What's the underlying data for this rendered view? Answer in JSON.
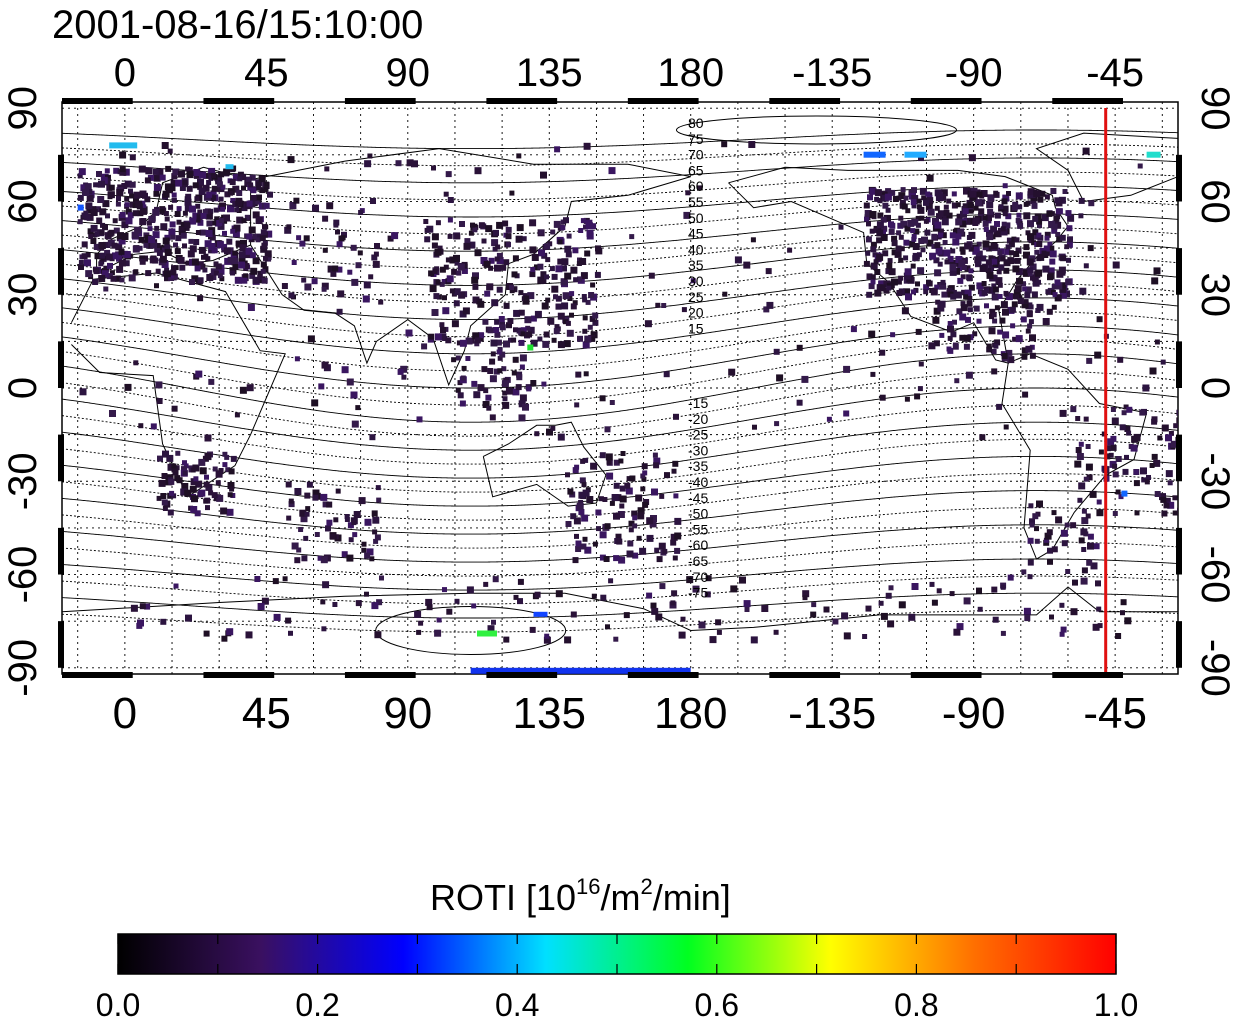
{
  "title": "2001-08-16/15:10:00",
  "map": {
    "lon_labels": [
      "0",
      "45",
      "90",
      "135",
      "180",
      "-135",
      "-90",
      "-45"
    ],
    "lon_values": [
      0,
      45,
      90,
      135,
      180,
      225,
      270,
      315
    ],
    "lat_labels_left": [
      "90",
      "60",
      "30",
      "0",
      "-30",
      "-60",
      "-90"
    ],
    "lat_labels_right": [
      "90",
      "60",
      "30",
      "0",
      "-30",
      "-60",
      "-90"
    ],
    "lat_values": [
      90,
      60,
      30,
      0,
      -30,
      -60,
      -90
    ],
    "lon_range": [
      -20,
      335
    ],
    "lat_range": [
      -92,
      92
    ],
    "terminator_lon": 312,
    "contour_labels_north": [
      "80",
      "75",
      "70",
      "65",
      "60",
      "55",
      "50",
      "45",
      "40",
      "35",
      "30",
      "25",
      "20",
      "15"
    ],
    "contour_labels_south": [
      "-15",
      "-20",
      "-25",
      "-30",
      "-35",
      "-40",
      "-45",
      "-50",
      "-55",
      "-60",
      "-65",
      "-70",
      "-75"
    ],
    "colors": {
      "terminator": "#e01010",
      "frame": "#000000",
      "data_base": "#2a1438"
    }
  },
  "colorbar": {
    "label_main": "ROTI  [10",
    "label_sup1": "16",
    "label_mid": "/m",
    "label_sup2": "2",
    "label_end": "/min]",
    "ticks": [
      "0.0",
      "0.2",
      "0.4",
      "0.6",
      "0.8",
      "1.0"
    ],
    "tick_values": [
      0.0,
      0.2,
      0.4,
      0.6,
      0.8,
      1.0
    ],
    "stops": [
      "#000000",
      "#3a1060",
      "#0000ff",
      "#00e0ff",
      "#00ff20",
      "#ffff00",
      "#ff7000",
      "#ff0000"
    ]
  }
}
